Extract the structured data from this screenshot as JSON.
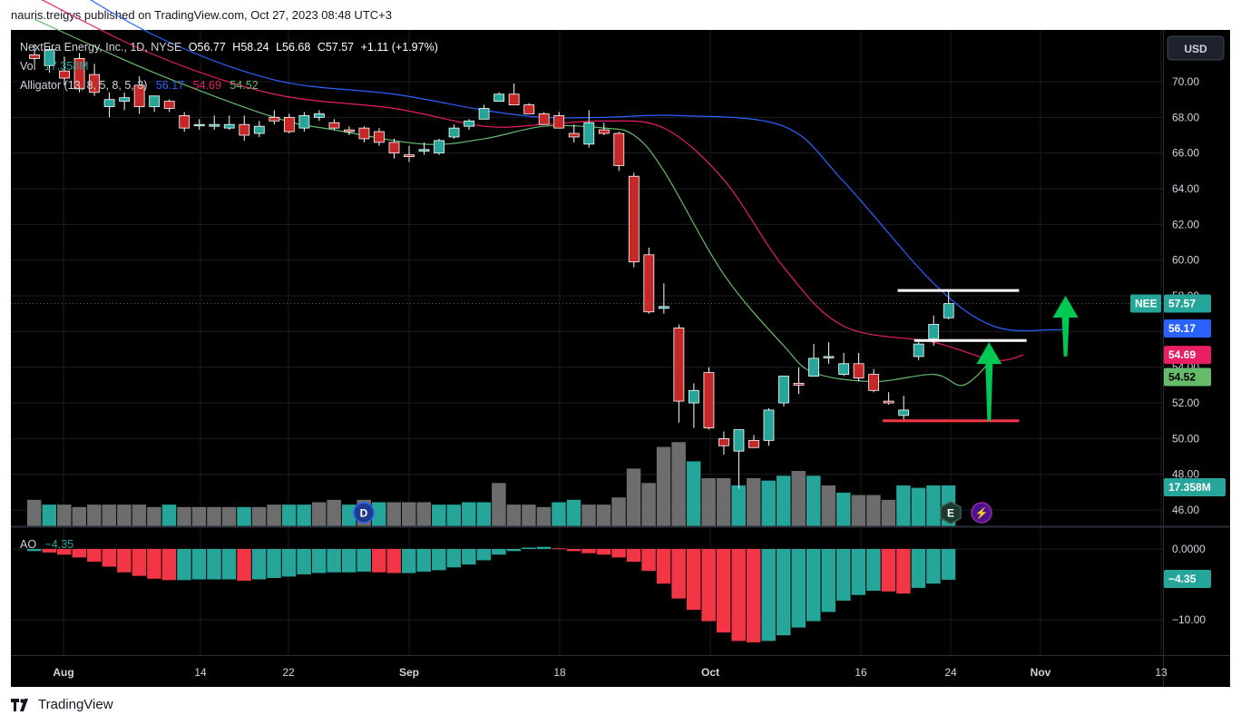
{
  "header": {
    "text": "nauris.treigys published on TradingView.com, Oct 27, 2023 08:48 UTC+3"
  },
  "footer": {
    "brand": "TradingView",
    "logo": "tradingview-logo"
  },
  "currency_button": "USD",
  "legend": {
    "line1": "NextEra Energy, Inc., 1D, NYSE",
    "open": "O56.77",
    "high": "H58.24",
    "low": "L56.68",
    "close": "C57.57",
    "change": "+1.11 (+1.97%)",
    "vol_label": "Vol",
    "vol_value": "17.358M",
    "alligator_label": "Alligator (13, 8, 5, 8, 5, 3)",
    "alligator_jaw": "56.17",
    "alligator_teeth": "54.69",
    "alligator_lips": "54.52",
    "ao_label": "AO",
    "ao_value": "−4.35"
  },
  "price_tags": {
    "nee_symbol": "NEE",
    "nee_price": "57.57",
    "jaw": "56.17",
    "teeth": "54.69",
    "lips": "54.52",
    "volume": "17.358M",
    "ao": "−4.35"
  },
  "event_markers": [
    "D",
    "E",
    "⚡"
  ],
  "colors": {
    "background": "#000000",
    "up": "#26a69a",
    "down": "#b71c1c",
    "down_fill": "#c62828",
    "vol_up": "#26a69a",
    "vol_down": "#6d6d6d",
    "jaw": "#2962ff",
    "teeth": "#e91e63",
    "lips": "#66bb6a",
    "ao_up": "#26a69a",
    "ao_down": "#f23645",
    "annotation_white": "#ffffff",
    "annotation_red": "#f23645",
    "annotation_green": "#00c853"
  },
  "chart_data": {
    "type": "candlestick",
    "price_axis": {
      "ticks": [
        "70.00",
        "68.00",
        "66.00",
        "64.00",
        "62.00",
        "60.00",
        "58.00",
        "56.00",
        "54.00",
        "52.00",
        "50.00",
        "48.00",
        "46.00"
      ],
      "ylim": [
        45.5,
        70.8
      ]
    },
    "time_axis": {
      "labels": [
        "Aug",
        "14",
        "22",
        "Sep",
        "Sep 18",
        "Oct",
        "16",
        "24",
        "Nov",
        "13"
      ],
      "display": [
        "Aug",
        "14",
        "22",
        "Sep",
        "18",
        "Oct",
        "16",
        "24",
        "Nov",
        "13"
      ]
    },
    "ao_axis": {
      "ticks": [
        "0.0000",
        "−10.00"
      ]
    },
    "candles": [
      {
        "o": 71.5,
        "h": 72.1,
        "l": 71.0,
        "c": 71.3
      },
      {
        "o": 70.9,
        "h": 72.0,
        "l": 70.5,
        "c": 71.8
      },
      {
        "o": 70.6,
        "h": 71.4,
        "l": 69.8,
        "c": 70.2
      },
      {
        "o": 71.3,
        "h": 71.6,
        "l": 69.4,
        "c": 69.6
      },
      {
        "o": 70.4,
        "h": 71.0,
        "l": 69.2,
        "c": 69.4
      },
      {
        "o": 68.6,
        "h": 69.4,
        "l": 68.0,
        "c": 69.0
      },
      {
        "o": 68.9,
        "h": 69.4,
        "l": 68.4,
        "c": 69.1
      },
      {
        "o": 69.8,
        "h": 70.3,
        "l": 68.2,
        "c": 68.6
      },
      {
        "o": 68.6,
        "h": 69.2,
        "l": 68.3,
        "c": 69.2
      },
      {
        "o": 68.9,
        "h": 69.0,
        "l": 68.3,
        "c": 68.5
      },
      {
        "o": 68.1,
        "h": 68.3,
        "l": 67.2,
        "c": 67.4
      },
      {
        "o": 67.6,
        "h": 67.9,
        "l": 67.3,
        "c": 67.6
      },
      {
        "o": 67.5,
        "h": 68.1,
        "l": 67.3,
        "c": 67.6
      },
      {
        "o": 67.4,
        "h": 68.1,
        "l": 67.3,
        "c": 67.6
      },
      {
        "o": 67.6,
        "h": 68.1,
        "l": 66.7,
        "c": 67.0
      },
      {
        "o": 67.1,
        "h": 67.8,
        "l": 66.9,
        "c": 67.5
      },
      {
        "o": 68.0,
        "h": 68.4,
        "l": 67.6,
        "c": 67.8
      },
      {
        "o": 68.0,
        "h": 68.2,
        "l": 67.1,
        "c": 67.2
      },
      {
        "o": 67.4,
        "h": 68.3,
        "l": 67.2,
        "c": 68.1
      },
      {
        "o": 68.0,
        "h": 68.4,
        "l": 67.8,
        "c": 68.2
      },
      {
        "o": 67.7,
        "h": 67.9,
        "l": 67.3,
        "c": 67.4
      },
      {
        "o": 67.3,
        "h": 67.5,
        "l": 67.0,
        "c": 67.2
      },
      {
        "o": 67.4,
        "h": 67.5,
        "l": 66.6,
        "c": 66.8
      },
      {
        "o": 67.2,
        "h": 67.4,
        "l": 66.4,
        "c": 66.6
      },
      {
        "o": 66.6,
        "h": 66.8,
        "l": 65.7,
        "c": 66.0
      },
      {
        "o": 65.9,
        "h": 66.4,
        "l": 65.5,
        "c": 65.8
      },
      {
        "o": 66.1,
        "h": 66.6,
        "l": 65.9,
        "c": 66.2
      },
      {
        "o": 66.0,
        "h": 66.8,
        "l": 65.9,
        "c": 66.7
      },
      {
        "o": 66.9,
        "h": 67.6,
        "l": 66.8,
        "c": 67.4
      },
      {
        "o": 67.5,
        "h": 67.9,
        "l": 67.3,
        "c": 67.8
      },
      {
        "o": 67.9,
        "h": 68.7,
        "l": 67.9,
        "c": 68.5
      },
      {
        "o": 68.9,
        "h": 69.4,
        "l": 68.9,
        "c": 69.3
      },
      {
        "o": 69.3,
        "h": 69.9,
        "l": 68.8,
        "c": 68.7
      },
      {
        "o": 68.7,
        "h": 68.8,
        "l": 68.2,
        "c": 68.2
      },
      {
        "o": 68.2,
        "h": 68.3,
        "l": 67.6,
        "c": 67.6
      },
      {
        "o": 68.1,
        "h": 68.3,
        "l": 67.5,
        "c": 67.4
      },
      {
        "o": 67.1,
        "h": 67.6,
        "l": 66.6,
        "c": 66.9
      },
      {
        "o": 66.5,
        "h": 68.4,
        "l": 66.3,
        "c": 67.7
      },
      {
        "o": 67.3,
        "h": 67.7,
        "l": 67.0,
        "c": 67.1
      },
      {
        "o": 67.1,
        "h": 67.2,
        "l": 65.0,
        "c": 65.3
      },
      {
        "o": 64.7,
        "h": 64.9,
        "l": 59.6,
        "c": 59.9
      },
      {
        "o": 60.3,
        "h": 60.7,
        "l": 57.0,
        "c": 57.1
      },
      {
        "o": 57.3,
        "h": 58.7,
        "l": 57.0,
        "c": 57.4
      },
      {
        "o": 56.2,
        "h": 56.4,
        "l": 50.9,
        "c": 52.1
      },
      {
        "o": 52.0,
        "h": 53.1,
        "l": 50.6,
        "c": 52.7
      },
      {
        "o": 53.7,
        "h": 54.0,
        "l": 50.5,
        "c": 50.6
      },
      {
        "o": 50.0,
        "h": 50.4,
        "l": 49.1,
        "c": 49.6
      },
      {
        "o": 49.3,
        "h": 50.5,
        "l": 47.2,
        "c": 50.5
      },
      {
        "o": 49.9,
        "h": 50.2,
        "l": 49.5,
        "c": 49.5
      },
      {
        "o": 49.9,
        "h": 51.7,
        "l": 49.6,
        "c": 51.6
      },
      {
        "o": 52.0,
        "h": 53.5,
        "l": 51.8,
        "c": 53.5
      },
      {
        "o": 53.1,
        "h": 54.0,
        "l": 52.5,
        "c": 53.0
      },
      {
        "o": 53.5,
        "h": 55.3,
        "l": 53.5,
        "c": 54.5
      },
      {
        "o": 54.6,
        "h": 55.4,
        "l": 54.2,
        "c": 54.6
      },
      {
        "o": 53.6,
        "h": 54.8,
        "l": 53.5,
        "c": 54.2
      },
      {
        "o": 54.2,
        "h": 54.8,
        "l": 53.2,
        "c": 53.4
      },
      {
        "o": 53.6,
        "h": 53.9,
        "l": 52.6,
        "c": 52.7
      },
      {
        "o": 52.1,
        "h": 52.6,
        "l": 51.9,
        "c": 52.0
      },
      {
        "o": 51.3,
        "h": 52.4,
        "l": 51.0,
        "c": 51.6
      },
      {
        "o": 54.6,
        "h": 55.4,
        "l": 54.4,
        "c": 55.3
      },
      {
        "o": 55.6,
        "h": 56.9,
        "l": 55.2,
        "c": 56.4
      },
      {
        "o": 56.77,
        "h": 58.24,
        "l": 56.68,
        "c": 57.57
      }
    ],
    "volume_M": [
      11,
      9,
      9,
      8,
      9,
      9,
      9,
      9,
      8,
      9,
      8,
      8,
      8,
      8,
      8,
      8,
      9,
      9,
      9,
      10,
      11,
      9,
      11,
      10,
      10,
      10,
      10,
      9,
      9,
      10,
      10,
      18,
      9,
      9,
      8,
      10,
      11,
      9,
      9,
      12,
      24,
      18,
      33,
      35,
      27,
      20,
      20,
      17,
      20,
      19,
      21,
      23,
      21,
      17,
      14,
      13,
      13,
      11,
      17,
      16,
      17,
      17
    ],
    "volume_dir": [
      "d",
      "u",
      "d",
      "d",
      "d",
      "d",
      "d",
      "d",
      "d",
      "u",
      "d",
      "d",
      "d",
      "d",
      "u",
      "d",
      "d",
      "u",
      "u",
      "d",
      "d",
      "u",
      "d",
      "u",
      "d",
      "d",
      "d",
      "u",
      "u",
      "u",
      "u",
      "d",
      "d",
      "d",
      "d",
      "u",
      "u",
      "d",
      "d",
      "d",
      "d",
      "d",
      "d",
      "d",
      "u",
      "d",
      "d",
      "u",
      "d",
      "u",
      "u",
      "d",
      "u",
      "d",
      "u",
      "d",
      "d",
      "d",
      "u",
      "u",
      "u",
      "u"
    ],
    "ao": [
      -0.3,
      -0.5,
      -0.8,
      -1.2,
      -1.8,
      -2.5,
      -3.3,
      -3.8,
      -4.2,
      -4.4,
      -4.4,
      -4.3,
      -4.3,
      -4.3,
      -4.5,
      -4.3,
      -4.1,
      -3.9,
      -3.6,
      -3.4,
      -3.3,
      -3.3,
      -3.2,
      -3.3,
      -3.4,
      -3.4,
      -3.2,
      -3.0,
      -2.6,
      -2.2,
      -1.6,
      -0.8,
      -0.3,
      0.2,
      0.3,
      0.1,
      -0.3,
      -0.6,
      -0.8,
      -1.2,
      -1.8,
      -3.1,
      -4.9,
      -7.0,
      -8.6,
      -10.2,
      -11.8,
      -13.0,
      -13.2,
      -13.0,
      -12.2,
      -11.1,
      -10.2,
      -8.9,
      -7.3,
      -6.5,
      -5.9,
      -6.0,
      -6.3,
      -5.5,
      -4.9,
      -4.35
    ],
    "alligator": {
      "jaw": [
        [
          0,
          76.5
        ],
        [
          8,
          72.6
        ],
        [
          16,
          70.1
        ],
        [
          24,
          69.3
        ],
        [
          30,
          68.4
        ],
        [
          34,
          68.0
        ],
        [
          38,
          68.0
        ],
        [
          43,
          68.1
        ],
        [
          50,
          67.5
        ],
        [
          54,
          64.4
        ],
        [
          60,
          58.7
        ],
        [
          64,
          56.3
        ],
        [
          68,
          56.1
        ],
        [
          69,
          56.17
        ]
      ],
      "teeth": [
        [
          0,
          74.8
        ],
        [
          8,
          71.5
        ],
        [
          16,
          69.3
        ],
        [
          24,
          68.5
        ],
        [
          30,
          67.5
        ],
        [
          34,
          67.6
        ],
        [
          38,
          67.8
        ],
        [
          42,
          67.4
        ],
        [
          46,
          64.5
        ],
        [
          50,
          59.6
        ],
        [
          54,
          56.3
        ],
        [
          60,
          55.4
        ],
        [
          64,
          54.4
        ],
        [
          66,
          54.69
        ]
      ],
      "lips": [
        [
          0,
          73.5
        ],
        [
          8,
          70.5
        ],
        [
          16,
          68.0
        ],
        [
          20,
          67.3
        ],
        [
          26,
          66.5
        ],
        [
          30,
          66.8
        ],
        [
          34,
          67.5
        ],
        [
          38,
          67.4
        ],
        [
          40,
          67.0
        ],
        [
          42,
          65.0
        ],
        [
          46,
          59.2
        ],
        [
          50,
          55.2
        ],
        [
          52,
          53.7
        ],
        [
          56,
          53.2
        ],
        [
          60,
          53.6
        ],
        [
          62,
          53.0
        ],
        [
          64,
          54.52
        ]
      ]
    },
    "annotations": {
      "white_lines": [
        [
          57.6,
          65.7,
          58.3
        ],
        [
          58.7,
          66.2,
          55.5
        ]
      ],
      "red_line": [
        56.6,
        65.7,
        51.0
      ],
      "arrows": [
        [
          63.7,
          51.0,
          55.4
        ],
        [
          68.8,
          54.6,
          58.0
        ]
      ]
    }
  }
}
